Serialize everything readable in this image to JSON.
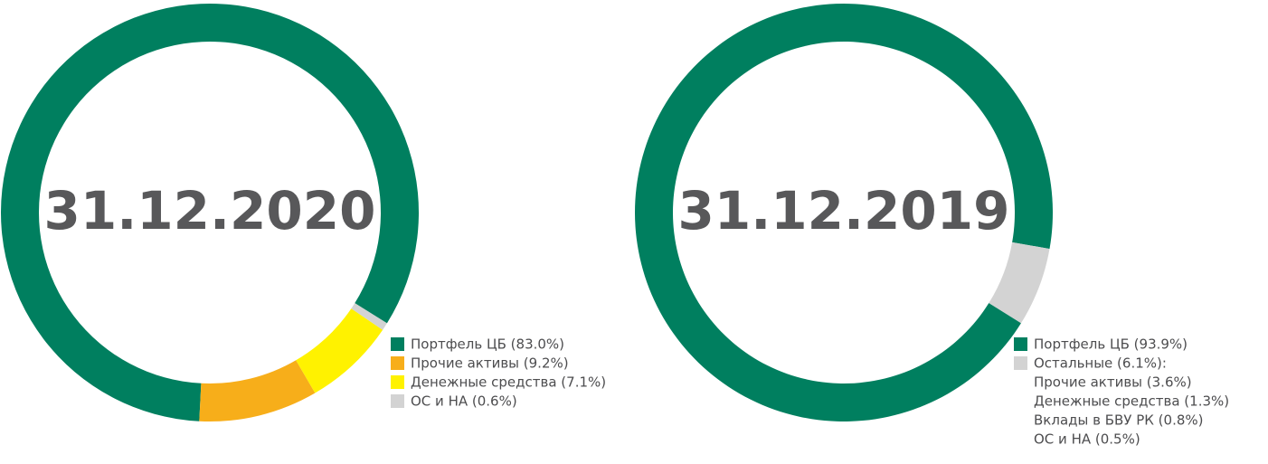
{
  "chart_data": [
    {
      "type": "donut",
      "title": "31.12.2020",
      "categories": [
        "Портфель ЦБ (83.0%)",
        "Прочие активы (9.2%)",
        "Денежные средства (7.1%)",
        "ОС и НА (0.6%)"
      ],
      "values": [
        83.0,
        9.2,
        7.1,
        0.6
      ],
      "colors": [
        "#007f5f",
        "#f7ae1a",
        "#fff200",
        "#d3d3d3"
      ]
    },
    {
      "type": "donut",
      "title": "31.12.2019",
      "categories": [
        "Портфель ЦБ (93.9%)",
        "Остальные (6.1%):"
      ],
      "values": [
        93.9,
        6.1
      ],
      "colors": [
        "#007f5f",
        "#d3d3d3"
      ],
      "breakdown": [
        "Прочие активы (3.6%)",
        "Денежные средства (1.3%)",
        "Вклады в БВУ РК (0.8%)",
        "ОС и НА (0.5%)"
      ]
    }
  ]
}
